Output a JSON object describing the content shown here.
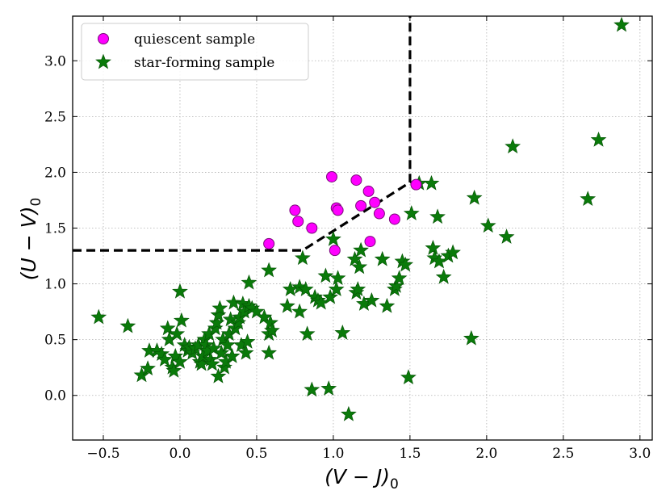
{
  "chart_data": {
    "type": "scatter",
    "title": "",
    "xlabel": "(V − J)",
    "xlabel_sub": "0",
    "ylabel": "(U − V)",
    "ylabel_sub": "0",
    "xlim": [
      -0.7,
      3.08
    ],
    "ylim": [
      -0.4,
      3.4
    ],
    "xticks": [
      -0.5,
      0.0,
      0.5,
      1.0,
      1.5,
      2.0,
      2.5,
      3.0
    ],
    "xtick_labels": [
      "−0.5",
      "0.0",
      "0.5",
      "1.0",
      "1.5",
      "2.0",
      "2.5",
      "3.0"
    ],
    "yticks": [
      0.0,
      0.5,
      1.0,
      1.5,
      2.0,
      2.5,
      3.0
    ],
    "ytick_labels": [
      "0.0",
      "0.5",
      "1.0",
      "1.5",
      "2.0",
      "2.5",
      "3.0"
    ],
    "grid": true,
    "legend_position": "top-left",
    "selection_boundary": [
      [
        -0.7,
        1.3
      ],
      [
        0.8,
        1.3
      ],
      [
        1.5,
        1.91
      ],
      [
        1.5,
        3.4
      ]
    ],
    "series": [
      {
        "name": "quiescent sample",
        "marker": "circle",
        "color": "#ff00ff",
        "edge_color": "#7a0a7a",
        "points": [
          [
            0.58,
            1.36
          ],
          [
            0.75,
            1.66
          ],
          [
            0.77,
            1.56
          ],
          [
            0.86,
            1.5
          ],
          [
            0.99,
            1.96
          ],
          [
            1.01,
            1.3
          ],
          [
            1.02,
            1.68
          ],
          [
            1.03,
            1.66
          ],
          [
            1.15,
            1.93
          ],
          [
            1.18,
            1.7
          ],
          [
            1.23,
            1.83
          ],
          [
            1.27,
            1.73
          ],
          [
            1.3,
            1.63
          ],
          [
            1.4,
            1.58
          ],
          [
            1.24,
            1.38
          ],
          [
            1.54,
            1.89
          ]
        ]
      },
      {
        "name": "star-forming sample",
        "marker": "star",
        "color": "#0a7a0a",
        "edge_color": "#055005",
        "points": [
          [
            -0.53,
            0.7
          ],
          [
            -0.34,
            0.62
          ],
          [
            -0.25,
            0.18
          ],
          [
            -0.21,
            0.24
          ],
          [
            -0.2,
            0.4
          ],
          [
            -0.15,
            0.4
          ],
          [
            -0.12,
            0.37
          ],
          [
            -0.1,
            0.32
          ],
          [
            -0.08,
            0.6
          ],
          [
            -0.07,
            0.5
          ],
          [
            -0.05,
            0.25
          ],
          [
            -0.04,
            0.22
          ],
          [
            -0.03,
            0.35
          ],
          [
            -0.02,
            0.55
          ],
          [
            0.0,
            0.93
          ],
          [
            0.0,
            0.3
          ],
          [
            0.01,
            0.67
          ],
          [
            0.03,
            0.45
          ],
          [
            0.05,
            0.4
          ],
          [
            0.06,
            0.43
          ],
          [
            0.08,
            0.38
          ],
          [
            0.1,
            0.42
          ],
          [
            0.12,
            0.45
          ],
          [
            0.13,
            0.3
          ],
          [
            0.14,
            0.28
          ],
          [
            0.15,
            0.35
          ],
          [
            0.16,
            0.5
          ],
          [
            0.17,
            0.45
          ],
          [
            0.18,
            0.4
          ],
          [
            0.19,
            0.55
          ],
          [
            0.2,
            0.32
          ],
          [
            0.21,
            0.28
          ],
          [
            0.22,
            0.42
          ],
          [
            0.23,
            0.6
          ],
          [
            0.24,
            0.65
          ],
          [
            0.25,
            0.17
          ],
          [
            0.25,
            0.72
          ],
          [
            0.26,
            0.78
          ],
          [
            0.27,
            0.38
          ],
          [
            0.28,
            0.5
          ],
          [
            0.29,
            0.25
          ],
          [
            0.3,
            0.3
          ],
          [
            0.31,
            0.45
          ],
          [
            0.32,
            0.55
          ],
          [
            0.33,
            0.68
          ],
          [
            0.34,
            0.35
          ],
          [
            0.35,
            0.83
          ],
          [
            0.36,
            0.6
          ],
          [
            0.38,
            0.65
          ],
          [
            0.39,
            0.7
          ],
          [
            0.4,
            0.45
          ],
          [
            0.41,
            0.82
          ],
          [
            0.42,
            0.75
          ],
          [
            0.43,
            0.38
          ],
          [
            0.44,
            0.48
          ],
          [
            0.45,
            1.01
          ],
          [
            0.45,
            0.8
          ],
          [
            0.47,
            0.78
          ],
          [
            0.5,
            0.75
          ],
          [
            0.55,
            0.7
          ],
          [
            0.58,
            0.38
          ],
          [
            0.58,
            0.55
          ],
          [
            0.59,
            0.65
          ],
          [
            0.6,
            0.58
          ],
          [
            0.58,
            1.12
          ],
          [
            0.7,
            0.8
          ],
          [
            0.72,
            0.95
          ],
          [
            0.78,
            0.97
          ],
          [
            0.78,
            0.75
          ],
          [
            0.8,
            1.23
          ],
          [
            0.82,
            0.95
          ],
          [
            0.83,
            0.55
          ],
          [
            0.86,
            0.05
          ],
          [
            0.88,
            0.88
          ],
          [
            0.9,
            0.85
          ],
          [
            0.92,
            0.83
          ],
          [
            0.95,
            1.07
          ],
          [
            0.97,
            0.06
          ],
          [
            0.98,
            0.88
          ],
          [
            1.0,
            1.4
          ],
          [
            1.02,
            0.95
          ],
          [
            1.03,
            1.05
          ],
          [
            1.06,
            0.56
          ],
          [
            1.1,
            -0.17
          ],
          [
            1.14,
            1.22
          ],
          [
            1.15,
            0.92
          ],
          [
            1.16,
            0.95
          ],
          [
            1.17,
            1.15
          ],
          [
            1.18,
            1.3
          ],
          [
            1.2,
            0.82
          ],
          [
            1.25,
            0.85
          ],
          [
            1.32,
            1.22
          ],
          [
            1.35,
            0.8
          ],
          [
            1.4,
            0.95
          ],
          [
            1.41,
            0.98
          ],
          [
            1.43,
            1.05
          ],
          [
            1.45,
            1.2
          ],
          [
            1.47,
            1.17
          ],
          [
            1.49,
            0.16
          ],
          [
            1.51,
            1.63
          ],
          [
            1.56,
            1.9
          ],
          [
            1.64,
            1.9
          ],
          [
            1.65,
            1.32
          ],
          [
            1.66,
            1.23
          ],
          [
            1.68,
            1.6
          ],
          [
            1.69,
            1.2
          ],
          [
            1.72,
            1.06
          ],
          [
            1.75,
            1.25
          ],
          [
            1.78,
            1.28
          ],
          [
            1.9,
            0.51
          ],
          [
            1.92,
            1.77
          ],
          [
            2.01,
            1.52
          ],
          [
            2.13,
            1.42
          ],
          [
            2.17,
            2.23
          ],
          [
            2.66,
            1.76
          ],
          [
            2.73,
            2.29
          ],
          [
            2.88,
            3.32
          ]
        ]
      }
    ]
  }
}
